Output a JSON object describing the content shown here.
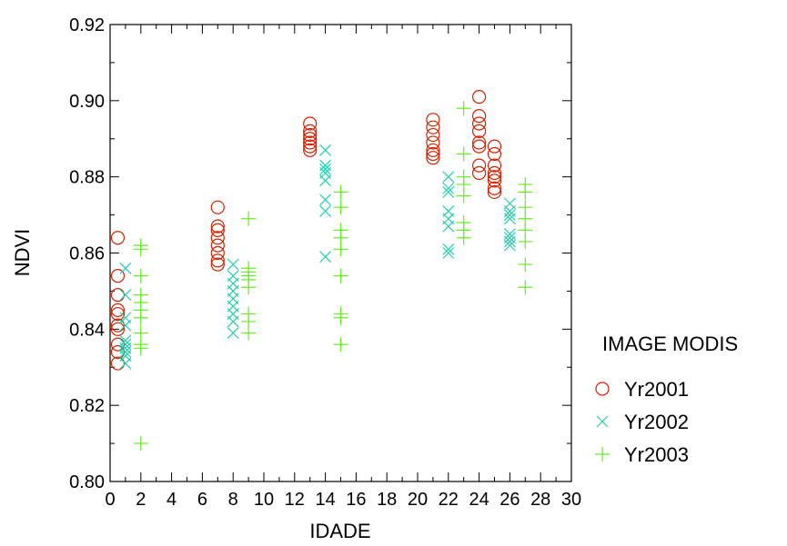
{
  "chart_data": {
    "type": "scatter",
    "title": "",
    "xlabel": "IDADE",
    "ylabel": "NDVI",
    "xlim": [
      0,
      30
    ],
    "ylim": [
      0.8,
      0.92
    ],
    "xticks": [
      "0",
      "2",
      "4",
      "6",
      "8",
      "10",
      "12",
      "14",
      "16",
      "18",
      "20",
      "22",
      "24",
      "26",
      "28",
      "30"
    ],
    "yticks": [
      "0.80",
      "0.82",
      "0.84",
      "0.86",
      "0.88",
      "0.90",
      "0.92"
    ],
    "grid": false,
    "legend": {
      "title": "IMAGE MODIS",
      "position": "right"
    },
    "series": [
      {
        "name": "Yr2001",
        "marker": "circle",
        "color": "#d62000",
        "points": [
          [
            0.5,
            0.864
          ],
          [
            0.5,
            0.854
          ],
          [
            0.5,
            0.849
          ],
          [
            0.5,
            0.845
          ],
          [
            0.5,
            0.844
          ],
          [
            0.5,
            0.841
          ],
          [
            0.5,
            0.84
          ],
          [
            0.5,
            0.836
          ],
          [
            0.5,
            0.834
          ],
          [
            0.5,
            0.831
          ],
          [
            7,
            0.872
          ],
          [
            7,
            0.867
          ],
          [
            7,
            0.866
          ],
          [
            7,
            0.864
          ],
          [
            7,
            0.862
          ],
          [
            7,
            0.86
          ],
          [
            7,
            0.858
          ],
          [
            7,
            0.857
          ],
          [
            13,
            0.894
          ],
          [
            13,
            0.892
          ],
          [
            13,
            0.891
          ],
          [
            13,
            0.89
          ],
          [
            13,
            0.889
          ],
          [
            13,
            0.888
          ],
          [
            13,
            0.887
          ],
          [
            21,
            0.895
          ],
          [
            21,
            0.893
          ],
          [
            21,
            0.891
          ],
          [
            21,
            0.889
          ],
          [
            21,
            0.887
          ],
          [
            21,
            0.886
          ],
          [
            21,
            0.885
          ],
          [
            24,
            0.901
          ],
          [
            24,
            0.896
          ],
          [
            24,
            0.894
          ],
          [
            24,
            0.892
          ],
          [
            24,
            0.889
          ],
          [
            24,
            0.888
          ],
          [
            24,
            0.883
          ],
          [
            24,
            0.881
          ],
          [
            25,
            0.888
          ],
          [
            25,
            0.886
          ],
          [
            25,
            0.883
          ],
          [
            25,
            0.881
          ],
          [
            25,
            0.88
          ],
          [
            25,
            0.879
          ],
          [
            25,
            0.877
          ],
          [
            25,
            0.876
          ]
        ]
      },
      {
        "name": "Yr2002",
        "marker": "x",
        "color": "#20d0b0",
        "points": [
          [
            1,
            0.856
          ],
          [
            1,
            0.849
          ],
          [
            1,
            0.843
          ],
          [
            1,
            0.841
          ],
          [
            1,
            0.837
          ],
          [
            1,
            0.836
          ],
          [
            1,
            0.835
          ],
          [
            1,
            0.834
          ],
          [
            1,
            0.833
          ],
          [
            1,
            0.831
          ],
          [
            8,
            0.857
          ],
          [
            8,
            0.854
          ],
          [
            8,
            0.852
          ],
          [
            8,
            0.85
          ],
          [
            8,
            0.848
          ],
          [
            8,
            0.846
          ],
          [
            8,
            0.844
          ],
          [
            8,
            0.842
          ],
          [
            8,
            0.839
          ],
          [
            14,
            0.887
          ],
          [
            14,
            0.883
          ],
          [
            14,
            0.882
          ],
          [
            14,
            0.881
          ],
          [
            14,
            0.879
          ],
          [
            14,
            0.874
          ],
          [
            14,
            0.871
          ],
          [
            14,
            0.859
          ],
          [
            22,
            0.88
          ],
          [
            22,
            0.877
          ],
          [
            22,
            0.876
          ],
          [
            22,
            0.871
          ],
          [
            22,
            0.869
          ],
          [
            22,
            0.867
          ],
          [
            22,
            0.861
          ],
          [
            22,
            0.86
          ],
          [
            26,
            0.873
          ],
          [
            26,
            0.871
          ],
          [
            26,
            0.87
          ],
          [
            26,
            0.869
          ],
          [
            26,
            0.865
          ],
          [
            26,
            0.864
          ],
          [
            26,
            0.863
          ],
          [
            26,
            0.862
          ]
        ]
      },
      {
        "name": "Yr2003",
        "marker": "plus",
        "color": "#66ee22",
        "points": [
          [
            2,
            0.862
          ],
          [
            2,
            0.861
          ],
          [
            2,
            0.854
          ],
          [
            2,
            0.849
          ],
          [
            2,
            0.847
          ],
          [
            2,
            0.845
          ],
          [
            2,
            0.843
          ],
          [
            2,
            0.839
          ],
          [
            2,
            0.836
          ],
          [
            2,
            0.835
          ],
          [
            2,
            0.81
          ],
          [
            9,
            0.869
          ],
          [
            9,
            0.856
          ],
          [
            9,
            0.855
          ],
          [
            9,
            0.854
          ],
          [
            9,
            0.853
          ],
          [
            9,
            0.851
          ],
          [
            9,
            0.844
          ],
          [
            9,
            0.842
          ],
          [
            9,
            0.839
          ],
          [
            15,
            0.876
          ],
          [
            15,
            0.872
          ],
          [
            15,
            0.866
          ],
          [
            15,
            0.864
          ],
          [
            15,
            0.861
          ],
          [
            15,
            0.854
          ],
          [
            15,
            0.844
          ],
          [
            15,
            0.843
          ],
          [
            15,
            0.836
          ],
          [
            23,
            0.898
          ],
          [
            23,
            0.886
          ],
          [
            23,
            0.88
          ],
          [
            23,
            0.878
          ],
          [
            23,
            0.875
          ],
          [
            23,
            0.868
          ],
          [
            23,
            0.866
          ],
          [
            23,
            0.864
          ],
          [
            27,
            0.878
          ],
          [
            27,
            0.876
          ],
          [
            27,
            0.872
          ],
          [
            27,
            0.869
          ],
          [
            27,
            0.866
          ],
          [
            27,
            0.863
          ],
          [
            27,
            0.857
          ],
          [
            27,
            0.851
          ]
        ]
      }
    ]
  }
}
